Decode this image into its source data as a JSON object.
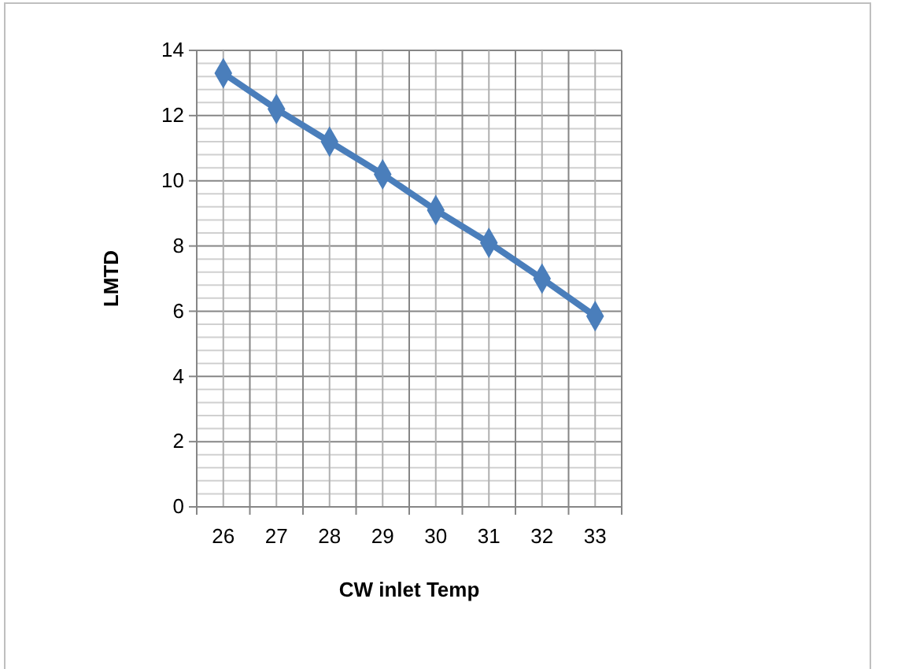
{
  "chart_data": {
    "type": "line",
    "xlabel": "CW inlet Temp",
    "ylabel": "LMTD",
    "categories": [
      "26",
      "27",
      "28",
      "29",
      "30",
      "31",
      "32",
      "33"
    ],
    "series": [
      {
        "color": "#4a7ebb",
        "values": [
          13.3,
          12.2,
          11.2,
          10.2,
          9.1,
          8.1,
          7.0,
          5.85
        ]
      }
    ],
    "ylim": [
      0,
      14
    ],
    "yticks": [
      0,
      2,
      4,
      6,
      8,
      10,
      12,
      14
    ],
    "grid": true,
    "marker": "diamond",
    "line_style": "solid",
    "legend": false
  }
}
